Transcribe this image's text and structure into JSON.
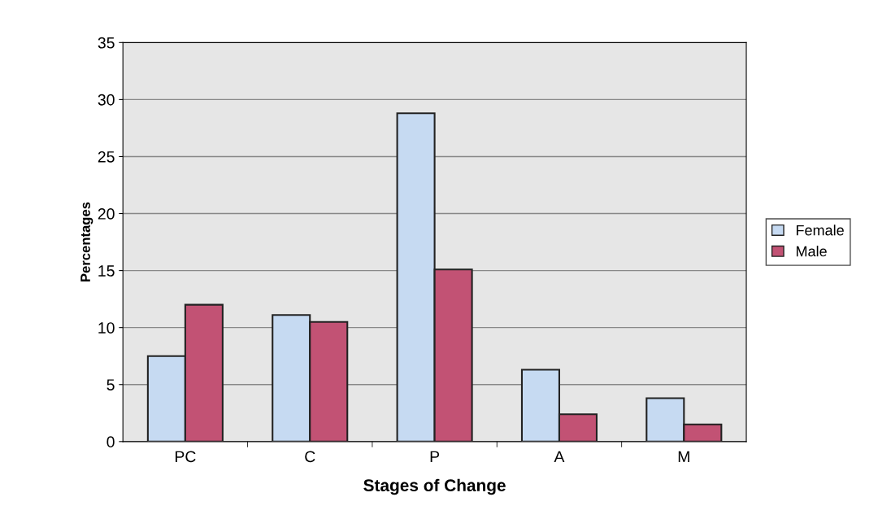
{
  "chart_data": {
    "type": "bar",
    "xlabel": "Stages of Change",
    "ylabel": "Percentages",
    "categories": [
      "PC",
      "C",
      "P",
      "A",
      "M"
    ],
    "series": [
      {
        "name": "Female",
        "color": "#c6daf2",
        "values": [
          7.5,
          11.1,
          28.8,
          6.3,
          3.8
        ]
      },
      {
        "name": "Male",
        "color": "#c25274",
        "values": [
          12.0,
          10.5,
          15.1,
          2.4,
          1.5
        ]
      }
    ],
    "ylim": [
      0,
      35
    ],
    "yticks": [
      0,
      5,
      10,
      15,
      20,
      25,
      30,
      35
    ],
    "grid": "y",
    "legend": "right"
  }
}
